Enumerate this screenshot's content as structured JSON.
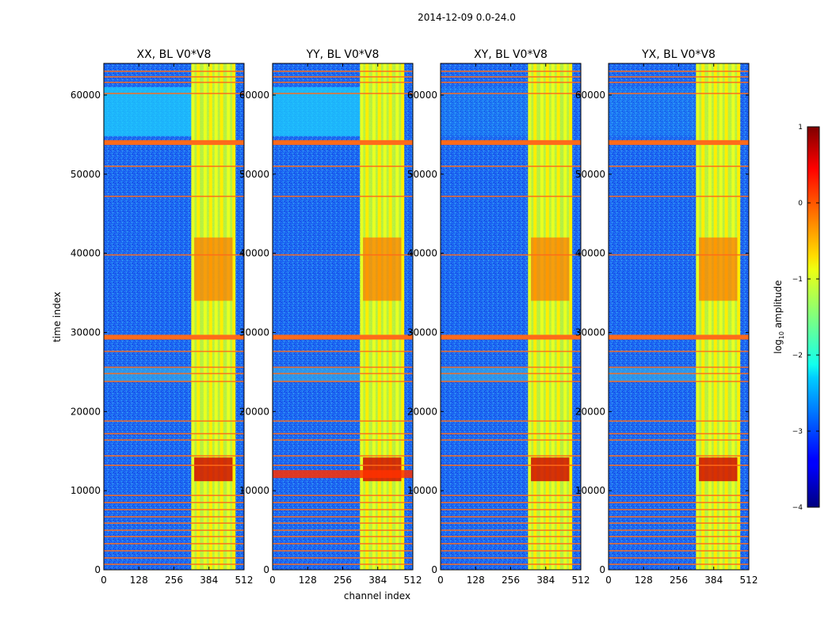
{
  "suptitle": "2014-12-09 0.0-24.0",
  "chart_data": {
    "type": "heatmap",
    "xlabel": "channel index",
    "ylabel": "time index",
    "xlim": [
      0,
      512
    ],
    "ylim": [
      0,
      64000
    ],
    "xticks": [
      0,
      128,
      256,
      384,
      512
    ],
    "yticks": [
      0,
      10000,
      20000,
      30000,
      40000,
      50000,
      60000
    ],
    "panels": [
      {
        "title": "XX, BL V0*V8",
        "pol": "XX"
      },
      {
        "title": "YY, BL V0*V8",
        "pol": "YY"
      },
      {
        "title": "XY, BL V0*V8",
        "pol": "XY"
      },
      {
        "title": "YX, BL V0*V8",
        "pol": "YX"
      }
    ],
    "colorbar": {
      "label": "log10 amplitude",
      "label_main": "log",
      "label_sub": "10",
      "label_rest": " amplitude",
      "range": [
        -4,
        1
      ],
      "ticks": [
        {
          "value": 1,
          "label": "1"
        },
        {
          "value": 0,
          "label": "0"
        },
        {
          "value": -1,
          "label": "−1"
        },
        {
          "value": -2,
          "label": "−2"
        },
        {
          "value": -3,
          "label": "−3"
        },
        {
          "value": -4,
          "label": "−4"
        }
      ]
    },
    "flagged_time_rows": [
      700,
      1500,
      2400,
      3300,
      4200,
      5000,
      5900,
      6700,
      7600,
      8500,
      9400,
      13200,
      14400,
      16400,
      17200,
      18800,
      23800,
      24800,
      25600,
      27600,
      29400,
      39800,
      47200,
      51000,
      54000,
      60200,
      61600,
      62300,
      63000
    ],
    "wide_flagged_rows": [
      29400,
      54000
    ],
    "bright_channel_columns": [
      325,
      345,
      370,
      390,
      410,
      430,
      455,
      475
    ],
    "rfi_band_channels": [
      325,
      480
    ]
  }
}
